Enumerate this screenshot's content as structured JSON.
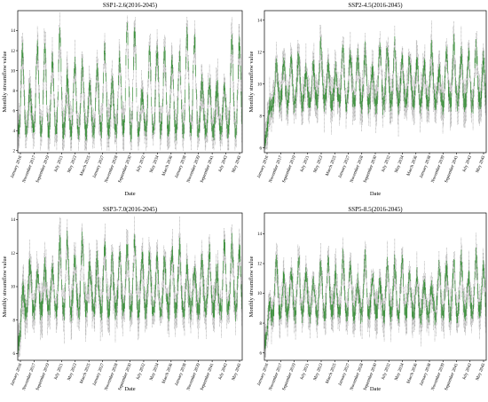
{
  "chart_data": [
    {
      "type": "boxplot",
      "title": "SSP1-2.6(2016-2045)",
      "xlabel": "Date",
      "ylabel": "Monthly streamflow value",
      "ylim": [
        1.8,
        16
      ],
      "yticks": [
        2,
        4,
        6,
        8,
        10,
        12,
        14
      ],
      "xticks": [
        "January 2016",
        "November 2017",
        "September 2019",
        "July 2021",
        "May 2023",
        "March 2025",
        "January 2027",
        "November 2028",
        "September 2030",
        "July 2032",
        "May 2034",
        "March 2036",
        "January 2038",
        "November 2039",
        "September 2041",
        "July 2043",
        "May 2045"
      ],
      "series_color": "#2e8b2e",
      "months": 360,
      "seasonal_pattern": {
        "low": 4.0,
        "high": 8.5,
        "peak_range": [
          7.5,
          14.5
        ],
        "spread": 1.6,
        "ramp_up": false
      }
    },
    {
      "type": "boxplot",
      "title": "SSP2-4.5(2016-2045)",
      "xlabel": "Date",
      "ylabel": "Monthly streamflow value",
      "ylim": [
        5.7,
        14.6
      ],
      "yticks": [
        6,
        8,
        10,
        12,
        14
      ],
      "xticks": [
        "January 2016",
        "November 2017",
        "September 2019",
        "July 2021",
        "May 2023",
        "March 2025",
        "January 2027",
        "November 2028",
        "September 2030",
        "July 2032",
        "May 2034",
        "March 2036",
        "January 2038",
        "November 2039",
        "September 2041",
        "July 2043",
        "May 2045"
      ],
      "series_color": "#2e8b2e",
      "months": 360,
      "seasonal_pattern": {
        "low": 8.8,
        "high": 11.2,
        "peak_range": [
          10.5,
          12.5
        ],
        "spread": 1.0,
        "ramp_up": true,
        "start": 6.3
      }
    },
    {
      "type": "boxplot",
      "title": "SSP3-7.0(2016-2045)",
      "xlabel": "Date",
      "ylabel": "Monthly streamflow value",
      "ylim": [
        5.6,
        14.4
      ],
      "yticks": [
        6,
        8,
        10,
        12,
        14
      ],
      "xticks": [
        "January 2016",
        "November 2017",
        "September 2019",
        "July 2021",
        "May 2023",
        "March 2025",
        "January 2027",
        "November 2028",
        "September 2030",
        "July 2032",
        "May 2034",
        "March 2036",
        "January 2038",
        "November 2039",
        "September 2041",
        "July 2043",
        "May 2045"
      ],
      "series_color": "#2e8b2e",
      "months": 360,
      "seasonal_pattern": {
        "low": 8.6,
        "high": 11.2,
        "peak_range": [
          10.8,
          12.8
        ],
        "spread": 1.0,
        "ramp_up": true,
        "start": 6.5
      }
    },
    {
      "type": "boxplot",
      "title": "SSP5-8.5(2016-2045)",
      "xlabel": "Date",
      "ylabel": "Monthly streamflow value",
      "ylim": [
        5.5,
        15.4
      ],
      "yticks": [
        6,
        8,
        10,
        12,
        14
      ],
      "xticks": [
        "January 2016",
        "November 2017",
        "September 2019",
        "July 2021",
        "May 2023",
        "March 2025",
        "January 2027",
        "November 2028",
        "September 2030",
        "July 2032",
        "May 2034",
        "March 2036",
        "January 2038",
        "November 2039",
        "September 2041",
        "July 2043",
        "May 2045"
      ],
      "series_color": "#2e8b2e",
      "months": 360,
      "seasonal_pattern": {
        "low": 8.6,
        "high": 11.0,
        "peak_range": [
          10.5,
          12.5
        ],
        "spread": 1.0,
        "ramp_up": true,
        "start": 6.6
      }
    }
  ]
}
